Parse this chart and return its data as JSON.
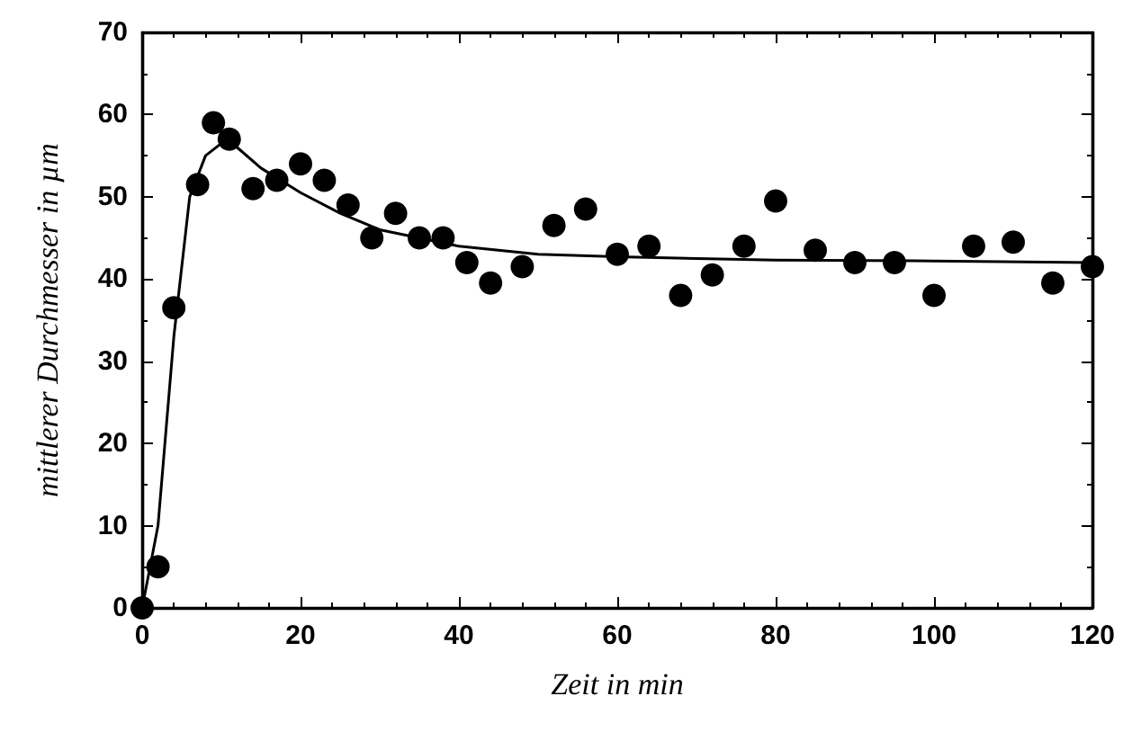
{
  "chart_data": {
    "type": "scatter",
    "xlabel": "Zeit in min",
    "ylabel": "mittlerer Durchmesser in µm",
    "xlim": [
      0,
      120
    ],
    "xticks": [
      0,
      20,
      40,
      60,
      80,
      100,
      120
    ],
    "ylim": [
      0,
      70
    ],
    "yticks": [
      0,
      10,
      20,
      30,
      40,
      50,
      60,
      70
    ],
    "grid": false,
    "marker": "circle",
    "series": [
      {
        "color": "#000000",
        "x": [
          0,
          2,
          4,
          7,
          9,
          11,
          14,
          17,
          20,
          23,
          26,
          29,
          32,
          35,
          38,
          41,
          44,
          48,
          52,
          56,
          60,
          64,
          68,
          72,
          76,
          80,
          85,
          90,
          95,
          100,
          105,
          110,
          115,
          120
        ],
        "values": [
          0,
          5,
          36.5,
          51.5,
          59,
          57,
          51,
          52,
          54,
          52,
          49,
          45,
          48,
          45,
          45,
          42,
          39.5,
          41.5,
          46.5,
          48.5,
          43,
          44,
          38,
          40.5,
          44,
          49.5,
          43.5,
          42,
          42,
          38,
          44,
          44.5,
          39.5,
          41.5
        ]
      },
      {
        "type": "line",
        "color": "#000000",
        "line_style": "solid",
        "marker": "none",
        "x": [
          0,
          2,
          4,
          6,
          8,
          10,
          12,
          15,
          20,
          25,
          30,
          40,
          50,
          60,
          80,
          100,
          120
        ],
        "values": [
          0,
          10,
          33,
          50,
          55,
          56.5,
          56,
          53.5,
          50.5,
          48,
          46,
          44,
          43,
          42.7,
          42.3,
          42.2,
          42
        ]
      }
    ]
  }
}
